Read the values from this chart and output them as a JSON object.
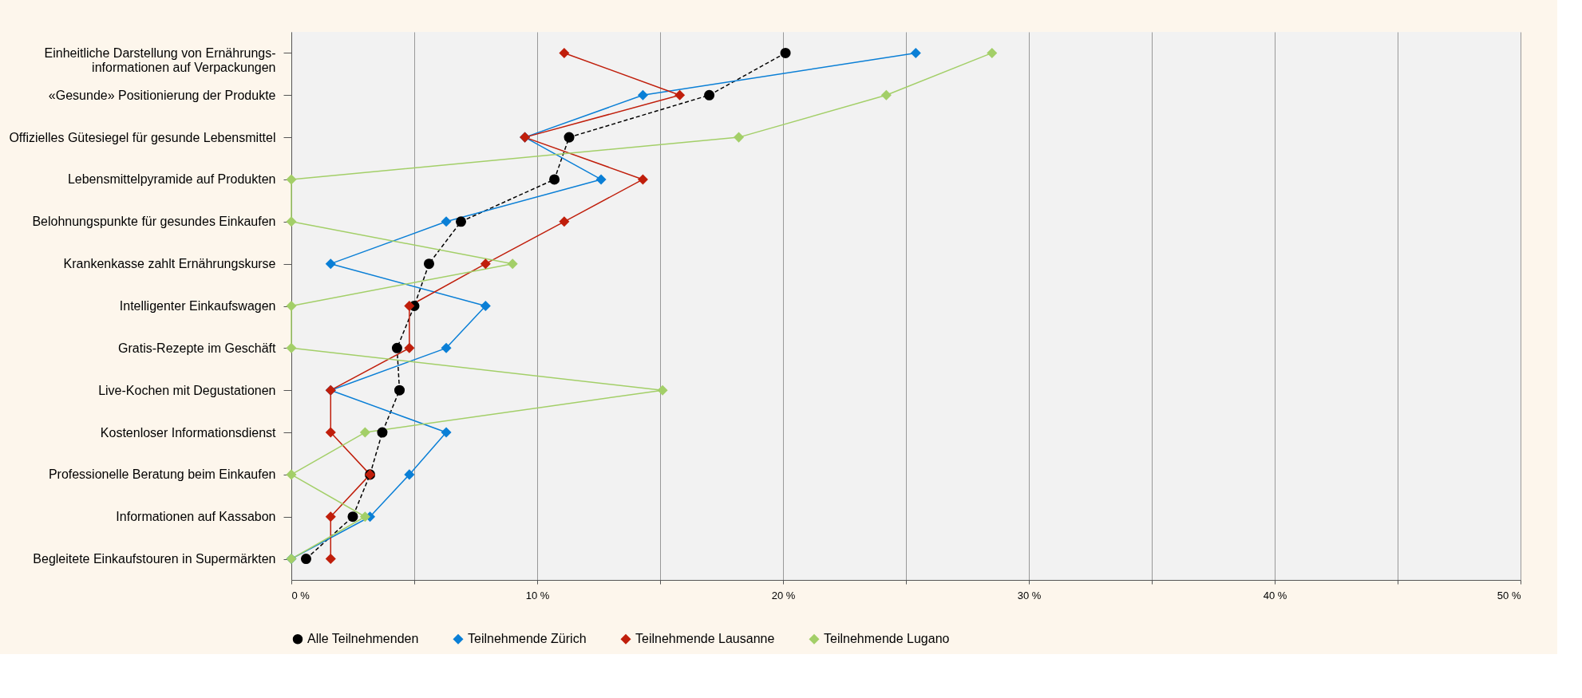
{
  "chart_data": {
    "type": "line",
    "orientation": "horizontal",
    "categories": [
      "Einheitliche Darstellung von Ernährungs-\ninformationen auf Verpackungen",
      "«Gesunde» Positionierung der Produkte",
      "Offizielles Gütesiegel für gesunde Lebensmittel",
      "Lebensmittelpyramide auf Produkten",
      "Belohnungspunkte für gesundes Einkaufen",
      "Krankenkasse zahlt Ernährungskurse",
      "Intelligenter Einkaufswagen",
      "Gratis-Rezepte im Geschäft",
      "Live-Kochen mit Degustationen",
      "Kostenloser Informationsdienst",
      "Professionelle Beratung beim Einkaufen",
      "Informationen auf Kassabon",
      "Begleitete Einkaufstouren in Supermärkten"
    ],
    "series": [
      {
        "name": "Alle Teilnehmenden",
        "color": "#000000",
        "marker": "circle",
        "line_style": "dashed",
        "values": [
          20.1,
          17.0,
          11.3,
          10.7,
          6.9,
          5.6,
          5.0,
          4.3,
          4.4,
          3.7,
          3.2,
          2.5,
          0.6
        ]
      },
      {
        "name": "Teilnehmende Zürich",
        "color": "#0a7fd6",
        "marker": "diamond",
        "line_style": "solid",
        "values": [
          25.4,
          14.3,
          9.5,
          12.6,
          6.3,
          1.6,
          7.9,
          6.3,
          1.6,
          6.3,
          4.8,
          3.2,
          0
        ]
      },
      {
        "name": "Teilnehmende Lausanne",
        "color": "#c01e0b",
        "marker": "diamond",
        "line_style": "solid",
        "values": [
          11.1,
          15.8,
          9.5,
          14.3,
          11.1,
          7.9,
          4.8,
          4.8,
          1.6,
          1.6,
          3.2,
          1.6,
          1.6
        ]
      },
      {
        "name": "Teilnehmende Lugano",
        "color": "#a3cf68",
        "marker": "diamond",
        "line_style": "solid",
        "values": [
          28.5,
          24.2,
          18.2,
          0,
          0,
          9.0,
          0,
          0,
          15.1,
          3.0,
          0,
          3.0,
          0
        ]
      }
    ],
    "xlim": [
      0,
      50
    ],
    "xticks": [
      {
        "value": 0,
        "label": "0 %"
      },
      {
        "value": 5,
        "label": null
      },
      {
        "value": 10,
        "label": "10 %"
      },
      {
        "value": 15,
        "label": null
      },
      {
        "value": 20,
        "label": "20 %"
      },
      {
        "value": 25,
        "label": null
      },
      {
        "value": 30,
        "label": "30 %"
      },
      {
        "value": 35,
        "label": null
      },
      {
        "value": 40,
        "label": "40 %"
      },
      {
        "value": 45,
        "label": null
      },
      {
        "value": 50,
        "label": "50 %"
      }
    ],
    "grid": "x",
    "legend": "bottom"
  }
}
